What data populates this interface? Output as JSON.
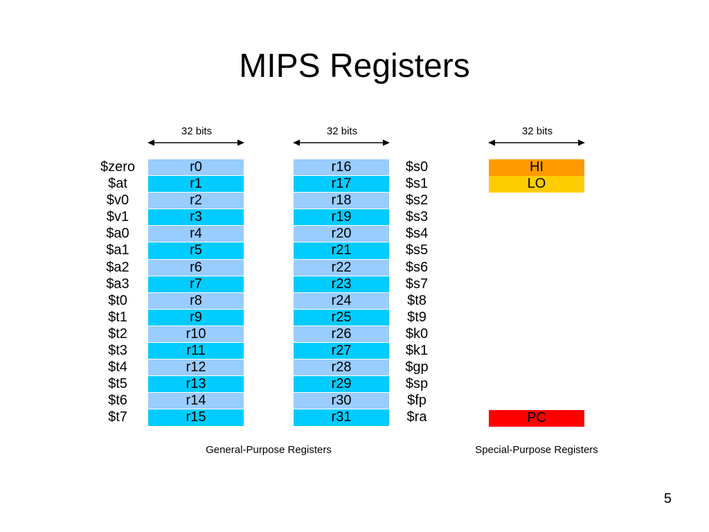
{
  "slide": {
    "title": "MIPS Registers",
    "page_number": "5"
  },
  "width_labels": [
    "32 bits",
    "32 bits",
    "32 bits"
  ],
  "gpr_left": {
    "names": [
      "$zero",
      "$at",
      "$v0",
      "$v1",
      "$a0",
      "$a1",
      "$a2",
      "$a3",
      "$t0",
      "$t1",
      "$t2",
      "$t3",
      "$t4",
      "$t5",
      "$t6",
      "$t7"
    ],
    "registers": [
      "r0",
      "r1",
      "r2",
      "r3",
      "r4",
      "r5",
      "r6",
      "r7",
      "r8",
      "r9",
      "r10",
      "r11",
      "r12",
      "r13",
      "r14",
      "r15"
    ]
  },
  "gpr_right": {
    "registers": [
      "r16",
      "r17",
      "r18",
      "r19",
      "r20",
      "r21",
      "r22",
      "r23",
      "r24",
      "r25",
      "r26",
      "r27",
      "r28",
      "r29",
      "r30",
      "r31"
    ],
    "names": [
      "$s0",
      "$s1",
      "$s2",
      "$s3",
      "$s4",
      "$s5",
      "$s6",
      "$s7",
      "$t8",
      "$t9",
      "$k0",
      "$k1",
      "$gp",
      "$sp",
      "$fp",
      "$ra"
    ]
  },
  "special": {
    "hi": "HI",
    "lo": "LO",
    "pc": "PC",
    "colors": {
      "hi": "#ff9900",
      "lo": "#ffcc00",
      "pc": "#ff0000"
    }
  },
  "colors": {
    "light_cell": "#99ccff",
    "dark_cell": "#00ccff"
  },
  "captions": {
    "general": "General-Purpose Registers",
    "special": "Special-Purpose Registers"
  }
}
